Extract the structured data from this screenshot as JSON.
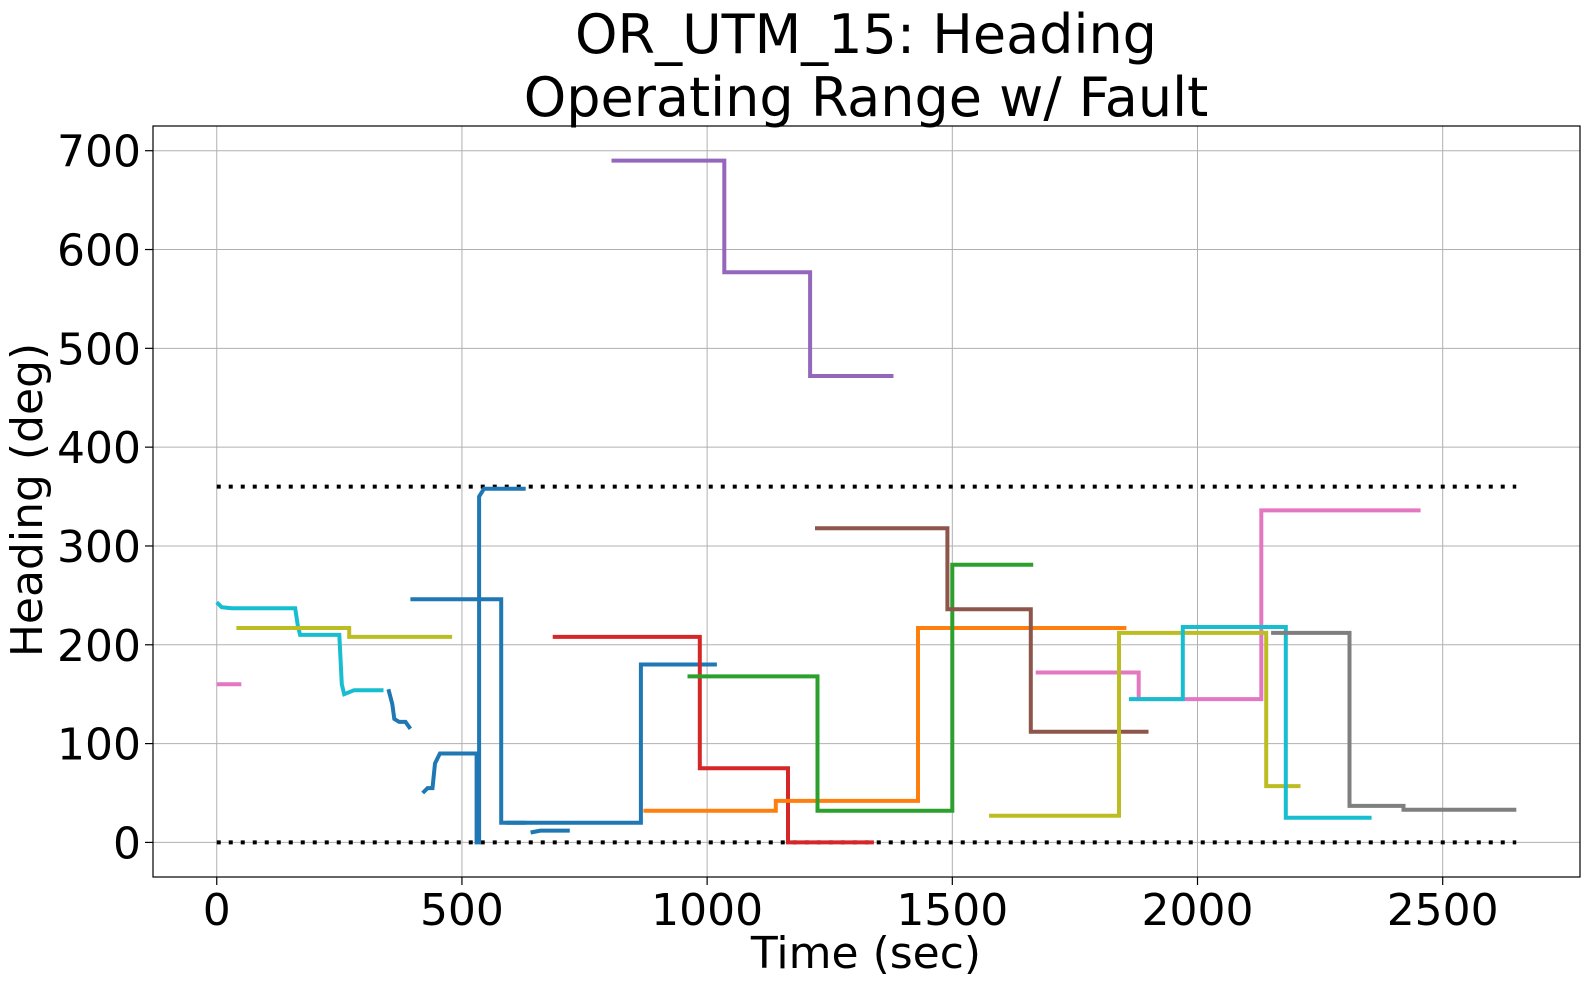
{
  "chart_data": {
    "type": "line",
    "title": [
      "OR_UTM_15: Heading",
      "Operating Range w/ Fault"
    ],
    "xlabel": "Time (sec)",
    "ylabel": "Heading (deg)",
    "xlim": [
      -130,
      2780
    ],
    "ylim": [
      -35,
      725
    ],
    "xticks": [
      0,
      500,
      1000,
      1500,
      2000,
      2500
    ],
    "yticks": [
      0,
      100,
      200,
      300,
      400,
      500,
      600,
      700
    ],
    "grid": true,
    "legend": "none",
    "limits": [
      {
        "name": "upper",
        "y": 360,
        "x": [
          0,
          2650
        ]
      },
      {
        "name": "lower",
        "y": 0,
        "x": [
          0,
          2650
        ]
      }
    ],
    "series": [
      {
        "color": "#1f77b4",
        "points": [
          [
            395,
            246
          ],
          [
            420,
            246
          ],
          [
            426,
            246
          ],
          [
            455,
            246
          ],
          [
            460,
            246
          ],
          [
            530,
            246
          ],
          [
            530,
            246
          ],
          [
            580,
            246
          ],
          [
            580,
            20
          ],
          [
            865,
            20
          ],
          [
            865,
            180
          ],
          [
            1020,
            180
          ]
        ]
      },
      {
        "color": "#1f77b4",
        "points": [
          [
            420,
            50
          ],
          [
            430,
            55
          ],
          [
            440,
            55
          ],
          [
            445,
            80
          ],
          [
            455,
            90
          ],
          [
            480,
            90
          ],
          [
            490,
            90
          ],
          [
            530,
            90
          ],
          [
            530,
            0
          ],
          [
            535,
            0
          ],
          [
            535,
            350
          ],
          [
            545,
            358
          ],
          [
            560,
            358
          ],
          [
            605,
            358
          ],
          [
            610,
            358
          ],
          [
            630,
            358
          ]
        ]
      },
      {
        "color": "#1f77b4",
        "points": [
          [
            350,
            155
          ],
          [
            358,
            140
          ],
          [
            362,
            125
          ],
          [
            372,
            122
          ],
          [
            385,
            122
          ],
          [
            395,
            115
          ]
        ]
      },
      {
        "color": "#1f77b4",
        "points": [
          [
            640,
            10
          ],
          [
            660,
            12
          ],
          [
            690,
            12
          ],
          [
            700,
            12
          ],
          [
            720,
            12
          ]
        ]
      },
      {
        "color": "#1f77b4",
        "points": [
          [
            590,
            20
          ],
          [
            630,
            20
          ]
        ]
      },
      {
        "color": "#17becf",
        "points": [
          [
            0,
            243
          ],
          [
            10,
            238
          ],
          [
            30,
            237
          ],
          [
            45,
            237
          ],
          [
            55,
            237
          ],
          [
            75,
            237
          ],
          [
            95,
            237
          ],
          [
            120,
            237
          ],
          [
            125,
            237
          ],
          [
            155,
            237
          ],
          [
            160,
            237
          ],
          [
            165,
            220
          ],
          [
            170,
            210
          ],
          [
            185,
            210
          ],
          [
            205,
            210
          ],
          [
            225,
            210
          ],
          [
            250,
            210
          ],
          [
            255,
            160
          ],
          [
            260,
            150
          ],
          [
            280,
            154
          ],
          [
            300,
            154
          ],
          [
            320,
            154
          ],
          [
            340,
            154
          ]
        ]
      },
      {
        "color": "#bcbd22",
        "points": [
          [
            40,
            217
          ],
          [
            70,
            217
          ],
          [
            80,
            217
          ],
          [
            130,
            217
          ],
          [
            140,
            217
          ],
          [
            170,
            217
          ],
          [
            190,
            217
          ],
          [
            220,
            217
          ],
          [
            230,
            217
          ],
          [
            270,
            217
          ],
          [
            270,
            208
          ],
          [
            300,
            208
          ],
          [
            310,
            208
          ],
          [
            320,
            208
          ],
          [
            335,
            208
          ],
          [
            400,
            208
          ],
          [
            420,
            208
          ],
          [
            480,
            208
          ]
        ]
      },
      {
        "color": "#e377c2",
        "points": [
          [
            0,
            160
          ],
          [
            50,
            160
          ]
        ]
      },
      {
        "color": "#9467bd",
        "points": [
          [
            805,
            690
          ],
          [
            1035,
            690
          ],
          [
            1035,
            577
          ],
          [
            1210,
            577
          ],
          [
            1210,
            472
          ],
          [
            1380,
            472
          ]
        ]
      },
      {
        "color": "#d62728",
        "points": [
          [
            685,
            208
          ],
          [
            700,
            208
          ],
          [
            710,
            208
          ],
          [
            985,
            208
          ],
          [
            985,
            75
          ],
          [
            1165,
            75
          ],
          [
            1165,
            0
          ],
          [
            1340,
            0
          ]
        ]
      },
      {
        "color": "#ff7f0e",
        "points": [
          [
            870,
            32
          ],
          [
            1140,
            32
          ],
          [
            1140,
            42
          ],
          [
            1430,
            42
          ],
          [
            1430,
            217
          ],
          [
            1600,
            217
          ],
          [
            1800,
            217
          ],
          [
            1855,
            217
          ]
        ]
      },
      {
        "color": "#2ca02c",
        "points": [
          [
            960,
            168
          ],
          [
            1225,
            168
          ],
          [
            1225,
            32
          ],
          [
            1500,
            32
          ],
          [
            1500,
            281
          ],
          [
            1665,
            281
          ]
        ]
      },
      {
        "color": "#8c564b",
        "points": [
          [
            1220,
            318
          ],
          [
            1370,
            318
          ],
          [
            1380,
            318
          ],
          [
            1490,
            318
          ],
          [
            1490,
            236
          ],
          [
            1660,
            236
          ],
          [
            1660,
            112
          ],
          [
            1680,
            112
          ],
          [
            1720,
            112
          ],
          [
            1900,
            112
          ]
        ]
      },
      {
        "color": "#e377c2",
        "points": [
          [
            1670,
            172
          ],
          [
            1880,
            172
          ],
          [
            1880,
            145
          ],
          [
            1885,
            145
          ],
          [
            2130,
            145
          ],
          [
            2130,
            336
          ],
          [
            2200,
            336
          ],
          [
            2210,
            336
          ],
          [
            2455,
            336
          ]
        ]
      },
      {
        "color": "#bcbd22",
        "points": [
          [
            1575,
            27
          ],
          [
            1680,
            27
          ],
          [
            1690,
            27
          ],
          [
            1840,
            27
          ],
          [
            1840,
            212
          ],
          [
            2140,
            212
          ],
          [
            2140,
            57
          ],
          [
            2210,
            57
          ]
        ]
      },
      {
        "color": "#17becf",
        "points": [
          [
            1860,
            145
          ],
          [
            1970,
            145
          ],
          [
            1970,
            218
          ],
          [
            2180,
            218
          ],
          [
            2180,
            25
          ],
          [
            2355,
            25
          ]
        ]
      },
      {
        "color": "#7f7f7f",
        "points": [
          [
            2150,
            212
          ],
          [
            2230,
            212
          ],
          [
            2240,
            212
          ],
          [
            2310,
            212
          ],
          [
            2310,
            37
          ],
          [
            2420,
            37
          ],
          [
            2420,
            33
          ],
          [
            2650,
            33
          ]
        ]
      }
    ]
  }
}
